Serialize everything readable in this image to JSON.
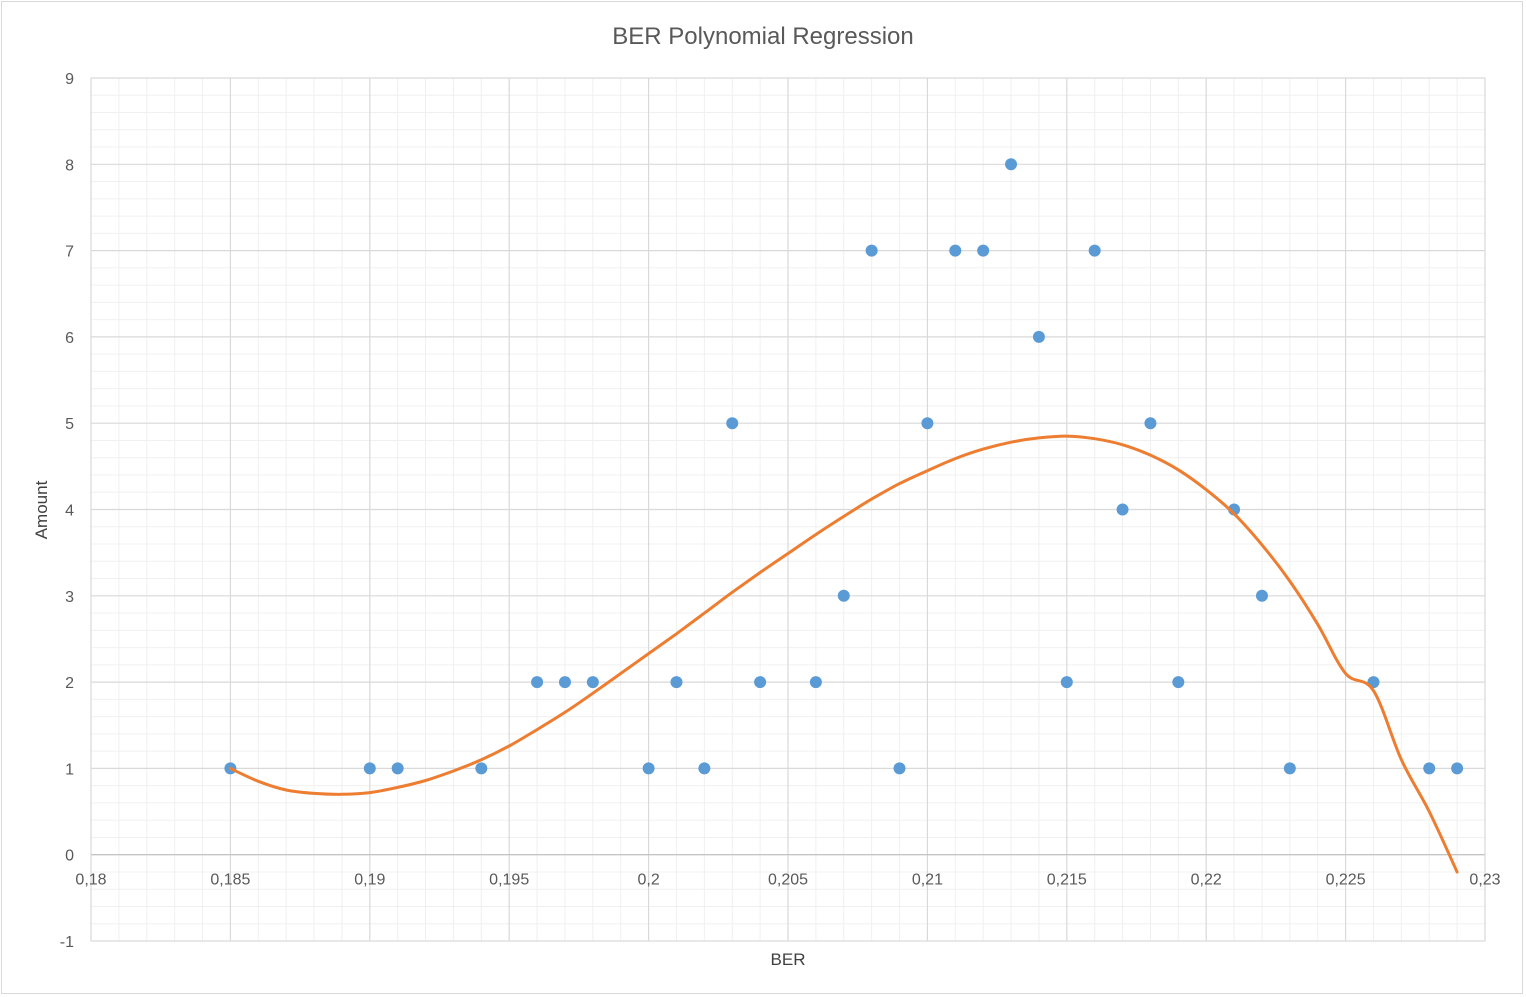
{
  "chart_data": {
    "type": "scatter",
    "title": "BER Polynomial Regression",
    "xlabel": "BER",
    "ylabel": "Amount",
    "xlim": [
      0.18,
      0.23
    ],
    "ylim": [
      -1,
      9
    ],
    "x_ticks": [
      "0,18",
      "0,185",
      "0,19",
      "0,195",
      "0,2",
      "0,205",
      "0,21",
      "0,215",
      "0,22",
      "0,225",
      "0,23"
    ],
    "y_ticks": [
      "-1",
      "0",
      "1",
      "2",
      "3",
      "4",
      "5",
      "6",
      "7",
      "8",
      "9"
    ],
    "grid": true,
    "legend": "none",
    "series": [
      {
        "kind": "scatter",
        "color": "#5b9bd5",
        "points": [
          [
            0.185,
            1
          ],
          [
            0.19,
            1
          ],
          [
            0.191,
            1
          ],
          [
            0.194,
            1
          ],
          [
            0.196,
            2
          ],
          [
            0.197,
            2
          ],
          [
            0.198,
            2
          ],
          [
            0.2,
            1
          ],
          [
            0.201,
            2
          ],
          [
            0.202,
            1
          ],
          [
            0.203,
            5
          ],
          [
            0.204,
            2
          ],
          [
            0.206,
            2
          ],
          [
            0.207,
            3
          ],
          [
            0.208,
            7
          ],
          [
            0.209,
            1
          ],
          [
            0.21,
            5
          ],
          [
            0.211,
            7
          ],
          [
            0.212,
            7
          ],
          [
            0.213,
            8
          ],
          [
            0.214,
            6
          ],
          [
            0.215,
            2
          ],
          [
            0.216,
            7
          ],
          [
            0.217,
            4
          ],
          [
            0.218,
            5
          ],
          [
            0.219,
            2
          ],
          [
            0.221,
            4
          ],
          [
            0.222,
            3
          ],
          [
            0.223,
            1
          ],
          [
            0.226,
            2
          ],
          [
            0.228,
            1
          ],
          [
            0.229,
            1
          ]
        ]
      },
      {
        "kind": "trendline",
        "color": "#ed7d31",
        "points": [
          [
            0.185,
            1.0
          ],
          [
            0.186,
            0.85
          ],
          [
            0.187,
            0.75
          ],
          [
            0.188,
            0.71
          ],
          [
            0.189,
            0.7
          ],
          [
            0.19,
            0.72
          ],
          [
            0.191,
            0.78
          ],
          [
            0.192,
            0.86
          ],
          [
            0.193,
            0.97
          ],
          [
            0.194,
            1.1
          ],
          [
            0.195,
            1.26
          ],
          [
            0.196,
            1.45
          ],
          [
            0.197,
            1.65
          ],
          [
            0.198,
            1.87
          ],
          [
            0.199,
            2.1
          ],
          [
            0.2,
            2.33
          ],
          [
            0.201,
            2.56
          ],
          [
            0.202,
            2.8
          ],
          [
            0.203,
            3.04
          ],
          [
            0.204,
            3.27
          ],
          [
            0.205,
            3.49
          ],
          [
            0.206,
            3.71
          ],
          [
            0.207,
            3.92
          ],
          [
            0.208,
            4.12
          ],
          [
            0.209,
            4.3
          ],
          [
            0.21,
            4.45
          ],
          [
            0.211,
            4.59
          ],
          [
            0.212,
            4.7
          ],
          [
            0.213,
            4.78
          ],
          [
            0.214,
            4.83
          ],
          [
            0.215,
            4.85
          ],
          [
            0.216,
            4.82
          ],
          [
            0.217,
            4.75
          ],
          [
            0.218,
            4.63
          ],
          [
            0.219,
            4.46
          ],
          [
            0.22,
            4.23
          ],
          [
            0.221,
            3.95
          ],
          [
            0.222,
            3.59
          ],
          [
            0.223,
            3.17
          ],
          [
            0.224,
            2.67
          ],
          [
            0.225,
            2.1
          ],
          [
            0.226,
            1.9
          ],
          [
            0.227,
            1.1
          ],
          [
            0.228,
            0.5
          ],
          [
            0.229,
            -0.2
          ]
        ]
      }
    ]
  }
}
